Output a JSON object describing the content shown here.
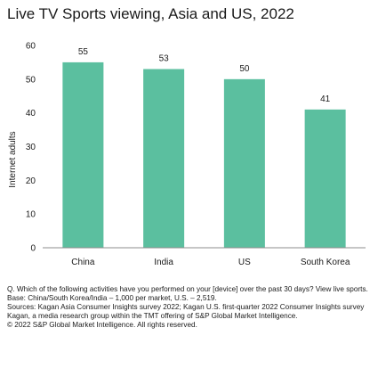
{
  "chart_data": {
    "type": "bar",
    "title": "Live TV Sports viewing, Asia and US, 2022",
    "xlabel": "",
    "ylabel": "Internet adults",
    "categories": [
      "China",
      "India",
      "US",
      "South Korea"
    ],
    "values": [
      55,
      53,
      50,
      41
    ],
    "ylim": [
      0,
      60
    ],
    "yticks": [
      0,
      10,
      20,
      30,
      40,
      50,
      60
    ],
    "bar_color": "#5bbf9f",
    "grid": false,
    "legend": "none"
  },
  "notes": {
    "question": "Q. Which of the following activities have you performed on your [device] over the past 30 days? View live sports.",
    "base": "Base: China/South Korea/India – 1,000 per market, U.S. – 2,519.",
    "sources": "Sources: Kagan Asia Consumer Insights survey 2022; Kagan U.S. first-quarter 2022 Consumer Insights survey",
    "kagan": "Kagan, a media research group within the TMT offering of S&P Global Market Intelligence.",
    "copyright": "© 2022 S&P Global Market Intelligence.  All rights reserved."
  }
}
